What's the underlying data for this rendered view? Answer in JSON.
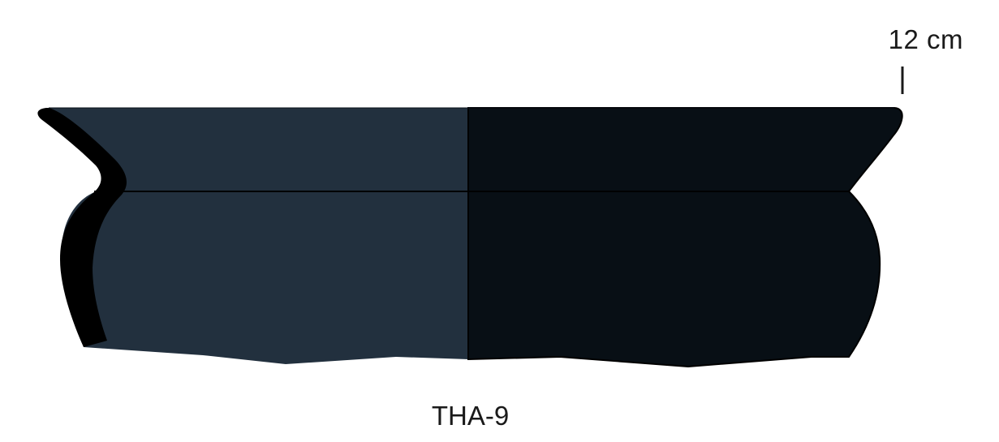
{
  "scale": {
    "label": "12 cm"
  },
  "sample": {
    "id": "THA-9"
  },
  "colors": {
    "exterior_half": "#22303e",
    "interior_half": "#080f15",
    "section_profile": "#000000",
    "outline": "#000000",
    "text": "#1a1a1a"
  }
}
